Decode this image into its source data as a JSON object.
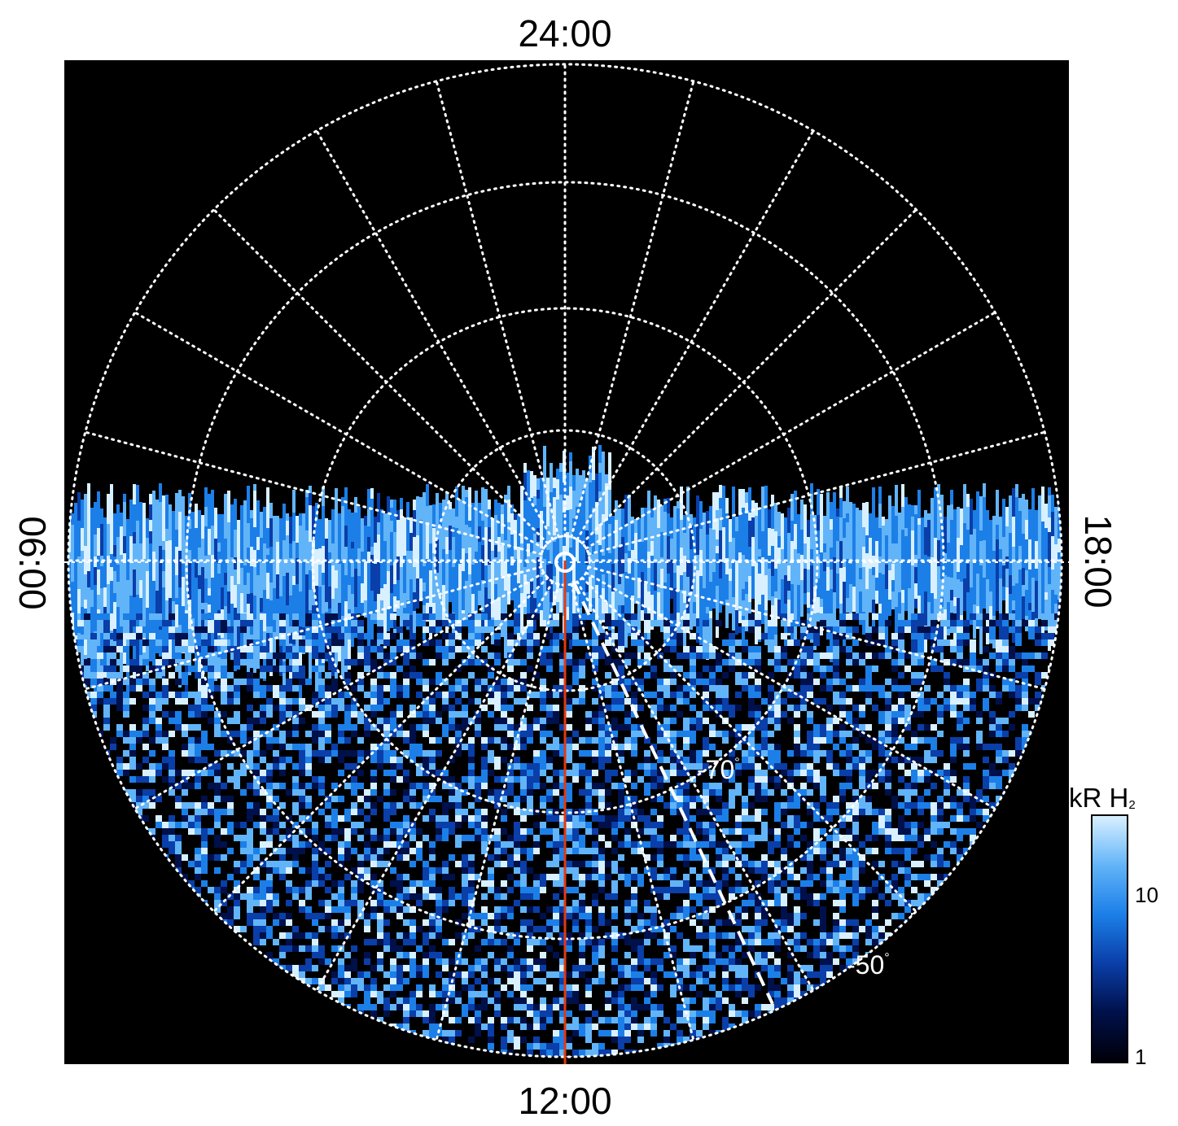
{
  "figure": {
    "local_time_labels": {
      "top": "24:00",
      "bottom": "12:00",
      "left": "06:00",
      "right": "18:00"
    },
    "latitude_labels": {
      "lat_70": "-70",
      "lat_50": "-50",
      "degree_symbol": "°"
    },
    "colorbar": {
      "title_main": "kR H",
      "title_sub": "2",
      "scale": "log",
      "range": [
        1,
        20
      ],
      "ticks": [
        "10",
        "1"
      ],
      "colors": [
        "#000008",
        "#00104a",
        "#0a3ea8",
        "#1c7fe8",
        "#62b4f8",
        "#d8f0ff"
      ]
    },
    "colors": {
      "background": "#000000",
      "grid": "#ffffff",
      "noon_meridian": "#e03a12",
      "auroral_emission": "#1c7fe8"
    },
    "grid": {
      "style": "dotted",
      "meridian_count": 24,
      "latitude_circles_deg": [
        -80,
        -70,
        -60,
        -50,
        -40
      ]
    }
  }
}
